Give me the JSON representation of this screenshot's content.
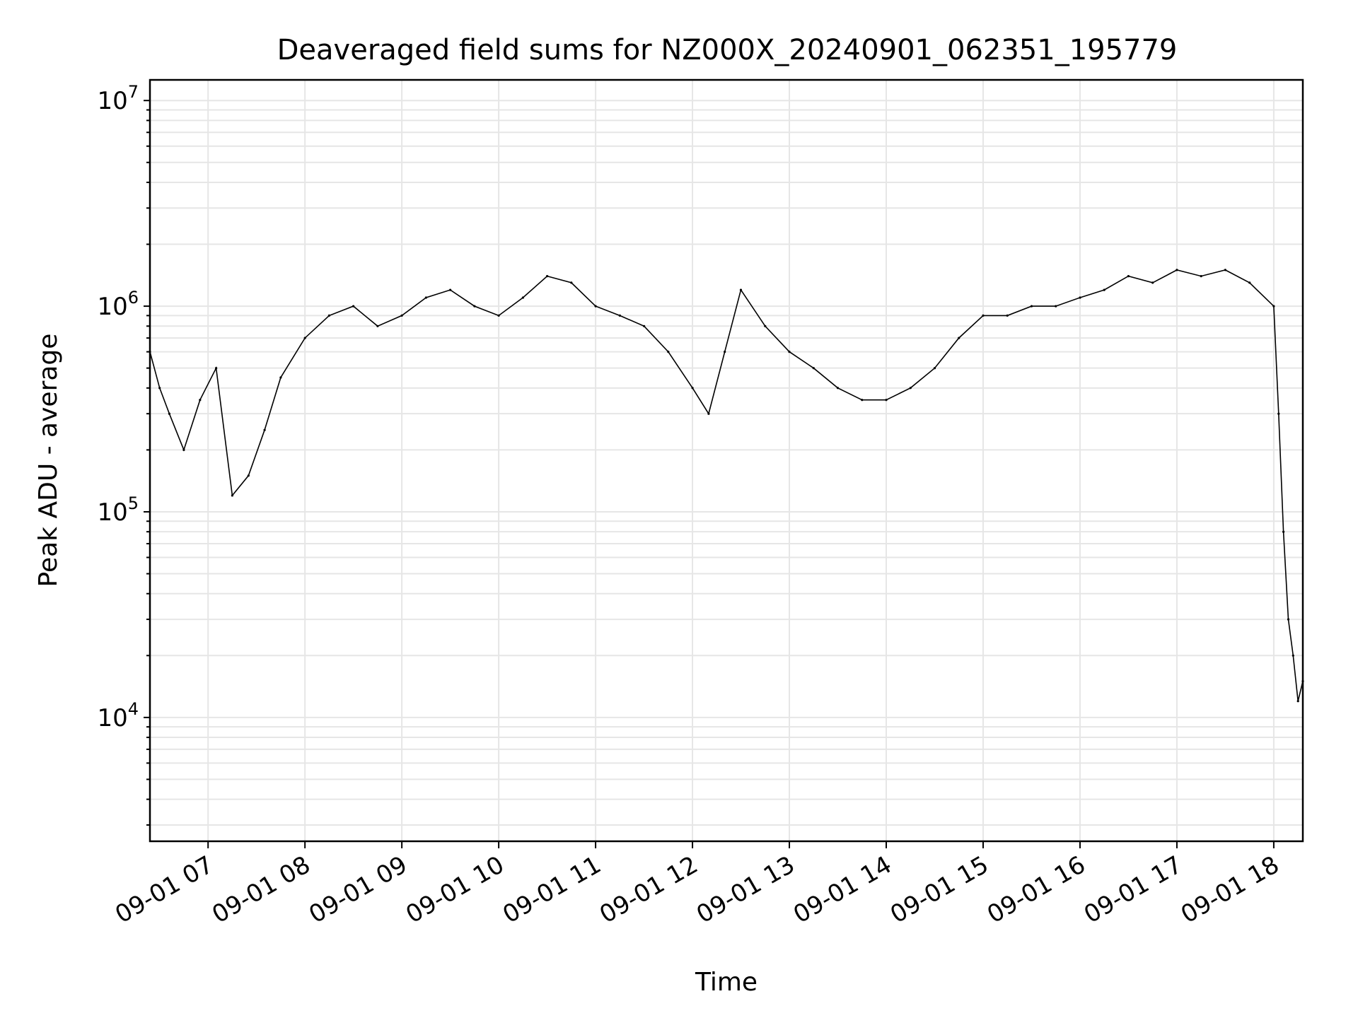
{
  "chart_data": {
    "type": "line",
    "title": "Deaveraged field sums for NZ000X_20240901_062351_195779",
    "xlabel": "Time",
    "ylabel": "Peak ADU - average",
    "yscale": "log",
    "ylim": [
      2500,
      12600000
    ],
    "xlim": [
      "2024-09-01 06:24",
      "2024-09-01 18:18"
    ],
    "grid": true,
    "x_ticks": [
      {
        "value": "2024-09-01 07:00",
        "label": "09-01 07"
      },
      {
        "value": "2024-09-01 08:00",
        "label": "09-01 08"
      },
      {
        "value": "2024-09-01 09:00",
        "label": "09-01 09"
      },
      {
        "value": "2024-09-01 10:00",
        "label": "09-01 10"
      },
      {
        "value": "2024-09-01 11:00",
        "label": "09-01 11"
      },
      {
        "value": "2024-09-01 12:00",
        "label": "09-01 12"
      },
      {
        "value": "2024-09-01 13:00",
        "label": "09-01 13"
      },
      {
        "value": "2024-09-01 14:00",
        "label": "09-01 14"
      },
      {
        "value": "2024-09-01 15:00",
        "label": "09-01 15"
      },
      {
        "value": "2024-09-01 16:00",
        "label": "09-01 16"
      },
      {
        "value": "2024-09-01 17:00",
        "label": "09-01 17"
      },
      {
        "value": "2024-09-01 18:00",
        "label": "09-01 18"
      }
    ],
    "y_ticks": [
      {
        "value": 10000,
        "base": "10",
        "exp": "4"
      },
      {
        "value": 100000,
        "base": "10",
        "exp": "5"
      },
      {
        "value": 1000000,
        "base": "10",
        "exp": "6"
      },
      {
        "value": 10000000,
        "base": "10",
        "exp": "7"
      }
    ],
    "series": [
      {
        "color": "#000000",
        "points": [
          [
            "2024-09-01 06:24",
            600000
          ],
          [
            "2024-09-01 06:30",
            400000
          ],
          [
            "2024-09-01 06:36",
            300000
          ],
          [
            "2024-09-01 06:45",
            200000
          ],
          [
            "2024-09-01 06:55",
            350000
          ],
          [
            "2024-09-01 07:05",
            500000
          ],
          [
            "2024-09-01 07:15",
            120000
          ],
          [
            "2024-09-01 07:25",
            150000
          ],
          [
            "2024-09-01 07:35",
            250000
          ],
          [
            "2024-09-01 07:45",
            450000
          ],
          [
            "2024-09-01 08:00",
            700000
          ],
          [
            "2024-09-01 08:15",
            900000
          ],
          [
            "2024-09-01 08:30",
            1000000
          ],
          [
            "2024-09-01 08:45",
            800000
          ],
          [
            "2024-09-01 09:00",
            900000
          ],
          [
            "2024-09-01 09:15",
            1100000
          ],
          [
            "2024-09-01 09:30",
            1200000
          ],
          [
            "2024-09-01 09:45",
            1000000
          ],
          [
            "2024-09-01 10:00",
            900000
          ],
          [
            "2024-09-01 10:15",
            1100000
          ],
          [
            "2024-09-01 10:30",
            1400000
          ],
          [
            "2024-09-01 10:45",
            1300000
          ],
          [
            "2024-09-01 11:00",
            1000000
          ],
          [
            "2024-09-01 11:15",
            900000
          ],
          [
            "2024-09-01 11:30",
            800000
          ],
          [
            "2024-09-01 11:45",
            600000
          ],
          [
            "2024-09-01 12:00",
            400000
          ],
          [
            "2024-09-01 12:10",
            300000
          ],
          [
            "2024-09-01 12:20",
            600000
          ],
          [
            "2024-09-01 12:30",
            1200000
          ],
          [
            "2024-09-01 12:45",
            800000
          ],
          [
            "2024-09-01 13:00",
            600000
          ],
          [
            "2024-09-01 13:15",
            500000
          ],
          [
            "2024-09-01 13:30",
            400000
          ],
          [
            "2024-09-01 13:45",
            350000
          ],
          [
            "2024-09-01 14:00",
            350000
          ],
          [
            "2024-09-01 14:15",
            400000
          ],
          [
            "2024-09-01 14:30",
            500000
          ],
          [
            "2024-09-01 14:45",
            700000
          ],
          [
            "2024-09-01 15:00",
            900000
          ],
          [
            "2024-09-01 15:15",
            900000
          ],
          [
            "2024-09-01 15:30",
            1000000
          ],
          [
            "2024-09-01 15:45",
            1000000
          ],
          [
            "2024-09-01 16:00",
            1100000
          ],
          [
            "2024-09-01 16:15",
            1200000
          ],
          [
            "2024-09-01 16:30",
            1400000
          ],
          [
            "2024-09-01 16:45",
            1300000
          ],
          [
            "2024-09-01 17:00",
            1500000
          ],
          [
            "2024-09-01 17:15",
            1400000
          ],
          [
            "2024-09-01 17:30",
            1500000
          ],
          [
            "2024-09-01 17:45",
            1300000
          ],
          [
            "2024-09-01 18:00",
            1000000
          ],
          [
            "2024-09-01 18:03",
            300000
          ],
          [
            "2024-09-01 18:06",
            80000
          ],
          [
            "2024-09-01 18:09",
            30000
          ],
          [
            "2024-09-01 18:12",
            20000
          ],
          [
            "2024-09-01 18:15",
            12000
          ],
          [
            "2024-09-01 18:18",
            15000
          ]
        ]
      }
    ]
  }
}
